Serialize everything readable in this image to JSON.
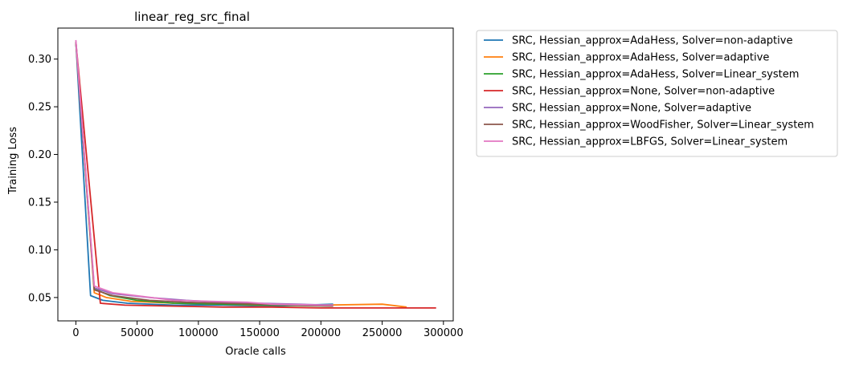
{
  "chart_data": {
    "type": "line",
    "title": "linear_reg_src_final",
    "xlabel": "Oracle calls",
    "ylabel": "Training Loss",
    "xlim": [
      -14700,
      308000
    ],
    "ylim": [
      0.0255,
      0.3325
    ],
    "xticks": [
      0,
      50000,
      100000,
      150000,
      200000,
      250000,
      300000
    ],
    "xtick_labels": [
      "0",
      "50000",
      "100000",
      "150000",
      "200000",
      "250000",
      "300000"
    ],
    "yticks": [
      0.05,
      0.1,
      0.15,
      0.2,
      0.25,
      0.3
    ],
    "ytick_labels": [
      "0.05",
      "0.10",
      "0.15",
      "0.20",
      "0.25",
      "0.30"
    ],
    "grid": false,
    "legend_position": "outside-upper-right",
    "series": [
      {
        "name": "SRC, Hessian_approx=AdaHess, Solver=non-adaptive",
        "color": "#1f77b4",
        "x": [
          0,
          12000,
          22000,
          42000,
          80000,
          120000,
          160000,
          210000
        ],
        "y": [
          0.318,
          0.052,
          0.047,
          0.044,
          0.042,
          0.042,
          0.041,
          0.043
        ]
      },
      {
        "name": "SRC, Hessian_approx=AdaHess, Solver=adaptive",
        "color": "#ff7f0e",
        "x": [
          0,
          15000,
          25000,
          45000,
          80000,
          120000,
          150000,
          200000,
          250000,
          270000
        ],
        "y": [
          0.318,
          0.055,
          0.05,
          0.046,
          0.044,
          0.043,
          0.042,
          0.042,
          0.043,
          0.04
        ]
      },
      {
        "name": "SRC, Hessian_approx=AdaHess, Solver=Linear_system",
        "color": "#2ca02c",
        "x": [
          0,
          15000,
          28000,
          50000,
          80000,
          120000,
          160000,
          210000
        ],
        "y": [
          0.318,
          0.059,
          0.052,
          0.047,
          0.044,
          0.043,
          0.042,
          0.041
        ]
      },
      {
        "name": "SRC, Hessian_approx=None, Solver=non-adaptive",
        "color": "#d62728",
        "x": [
          0,
          20000,
          40000,
          80000,
          120000,
          160000,
          200000,
          250000,
          294000
        ],
        "y": [
          0.318,
          0.044,
          0.042,
          0.041,
          0.04,
          0.04,
          0.039,
          0.039,
          0.039
        ]
      },
      {
        "name": "SRC, Hessian_approx=None, Solver=adaptive",
        "color": "#9467bd",
        "x": [
          0,
          15000,
          30000,
          60000,
          90000,
          120000,
          150000,
          180000,
          210000
        ],
        "y": [
          0.318,
          0.06,
          0.054,
          0.05,
          0.047,
          0.045,
          0.044,
          0.043,
          0.042
        ]
      },
      {
        "name": "SRC, Hessian_approx=WoodFisher, Solver=Linear_system",
        "color": "#8c564b",
        "x": [
          0,
          15000,
          30000,
          60000,
          90000,
          120000,
          150000,
          180000,
          210000
        ],
        "y": [
          0.318,
          0.058,
          0.052,
          0.047,
          0.045,
          0.044,
          0.043,
          0.042,
          0.041
        ]
      },
      {
        "name": "SRC, Hessian_approx=LBFGS, Solver=Linear_system",
        "color": "#e377c2",
        "x": [
          0,
          15000,
          30000,
          55000,
          80000,
          110000,
          140000,
          160000,
          200000,
          210000
        ],
        "y": [
          0.32,
          0.062,
          0.055,
          0.051,
          0.047,
          0.046,
          0.045,
          0.043,
          0.042,
          0.042
        ]
      }
    ]
  }
}
